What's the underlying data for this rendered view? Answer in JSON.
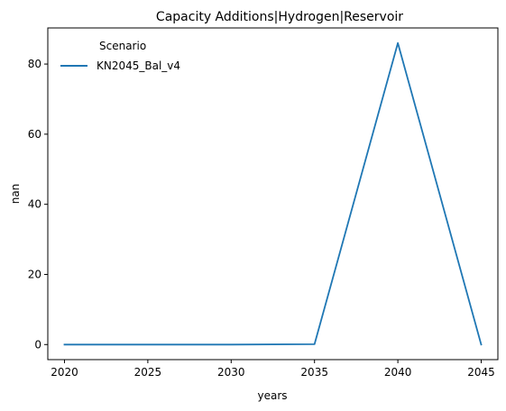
{
  "chart_data": {
    "type": "line",
    "title": "Capacity Additions|Hydrogen|Reservoir",
    "xlabel": "years",
    "ylabel": "nan",
    "x": [
      2020,
      2025,
      2030,
      2035,
      2040,
      2045
    ],
    "series": [
      {
        "name": "KN2045_Bal_v4",
        "color": "#1f77b4",
        "values": [
          0,
          0,
          0,
          0.1,
          86,
          0
        ]
      }
    ],
    "xticks": [
      2020,
      2025,
      2030,
      2035,
      2040,
      2045
    ],
    "yticks": [
      0,
      20,
      40,
      60,
      80
    ],
    "xlim": [
      2019,
      2046
    ],
    "ylim": [
      -4.3,
      90.3
    ],
    "grid": false,
    "legend": {
      "title": "Scenario",
      "placement": "top-left"
    }
  }
}
